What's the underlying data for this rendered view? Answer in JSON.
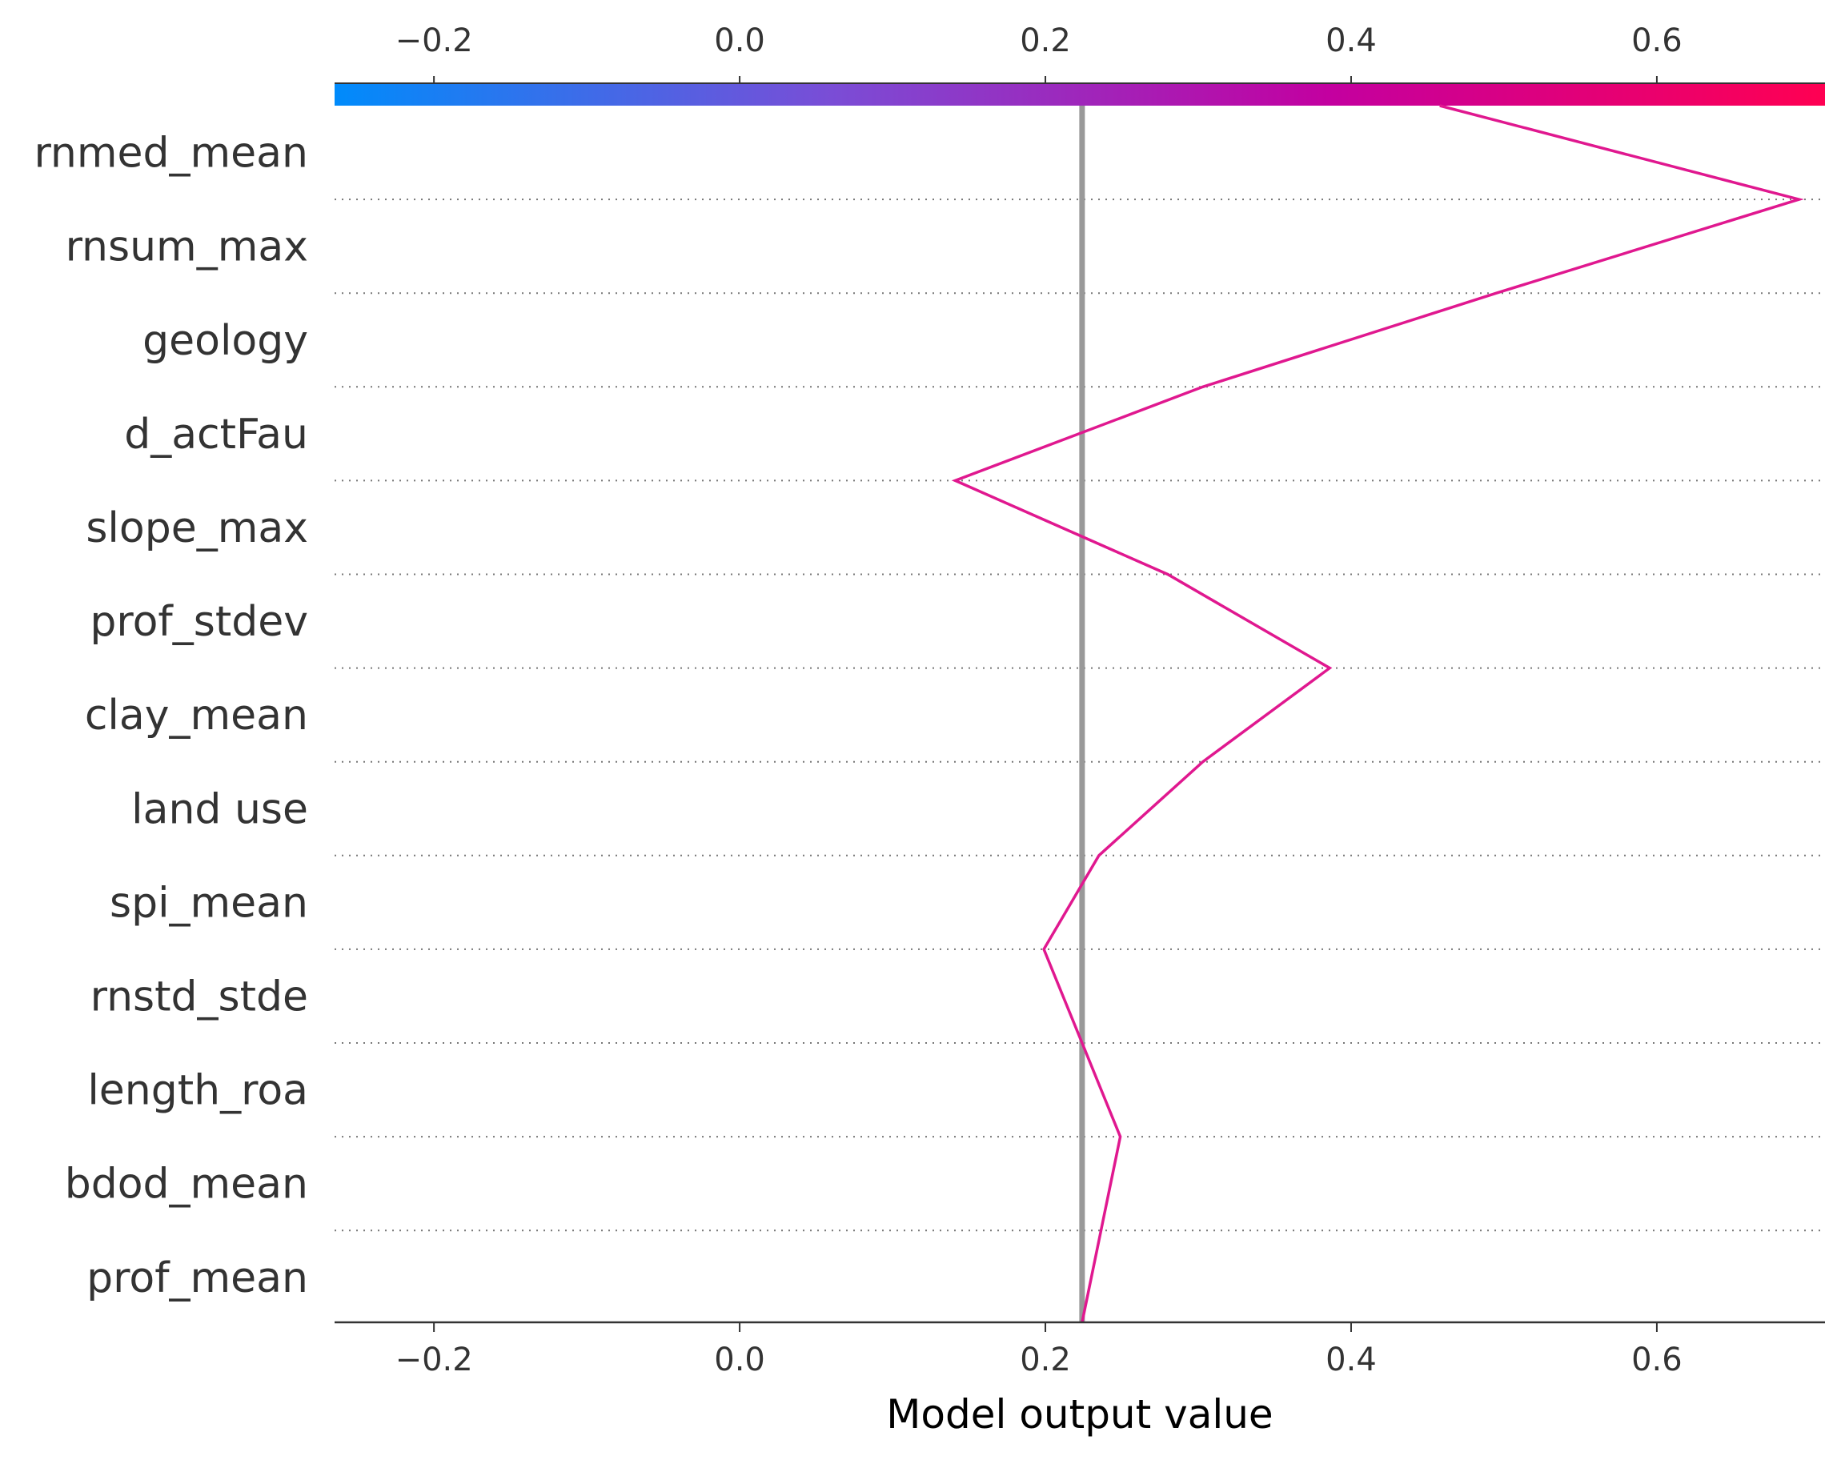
{
  "chart_data": {
    "type": "line",
    "subtype": "decision-plot",
    "title": "",
    "xlabel": "Model output value",
    "ylabel": "",
    "xlim": [
      -0.265,
      0.71
    ],
    "xticks": [
      -0.2,
      0.0,
      0.2,
      0.4,
      0.6
    ],
    "xtick_labels": [
      "−0.2",
      "0.0",
      "0.2",
      "0.4",
      "0.6"
    ],
    "base_value": 0.224,
    "features": [
      "rnmed_mean",
      "rnsum_max",
      "geology",
      "d_actFau",
      "slope_max",
      "prof_stdev",
      "clay_mean",
      "land use",
      "spi_mean",
      "rnstd_stde",
      "length_roa",
      "bdod_mean",
      "prof_mean"
    ],
    "path_top_to_bottom": [
      0.458,
      0.693,
      0.495,
      0.303,
      0.141,
      0.28,
      0.386,
      0.303,
      0.235,
      0.199,
      0.224,
      0.249,
      0.224
    ],
    "line_color": "#e0188f",
    "base_line_color": "#999999",
    "colorbar": {
      "position": "top",
      "colors": [
        "#008bfb",
        "#7a4dd6",
        "#c300a0",
        "#ff0052"
      ]
    },
    "grid": "dotted horizontal",
    "legend": "none"
  }
}
